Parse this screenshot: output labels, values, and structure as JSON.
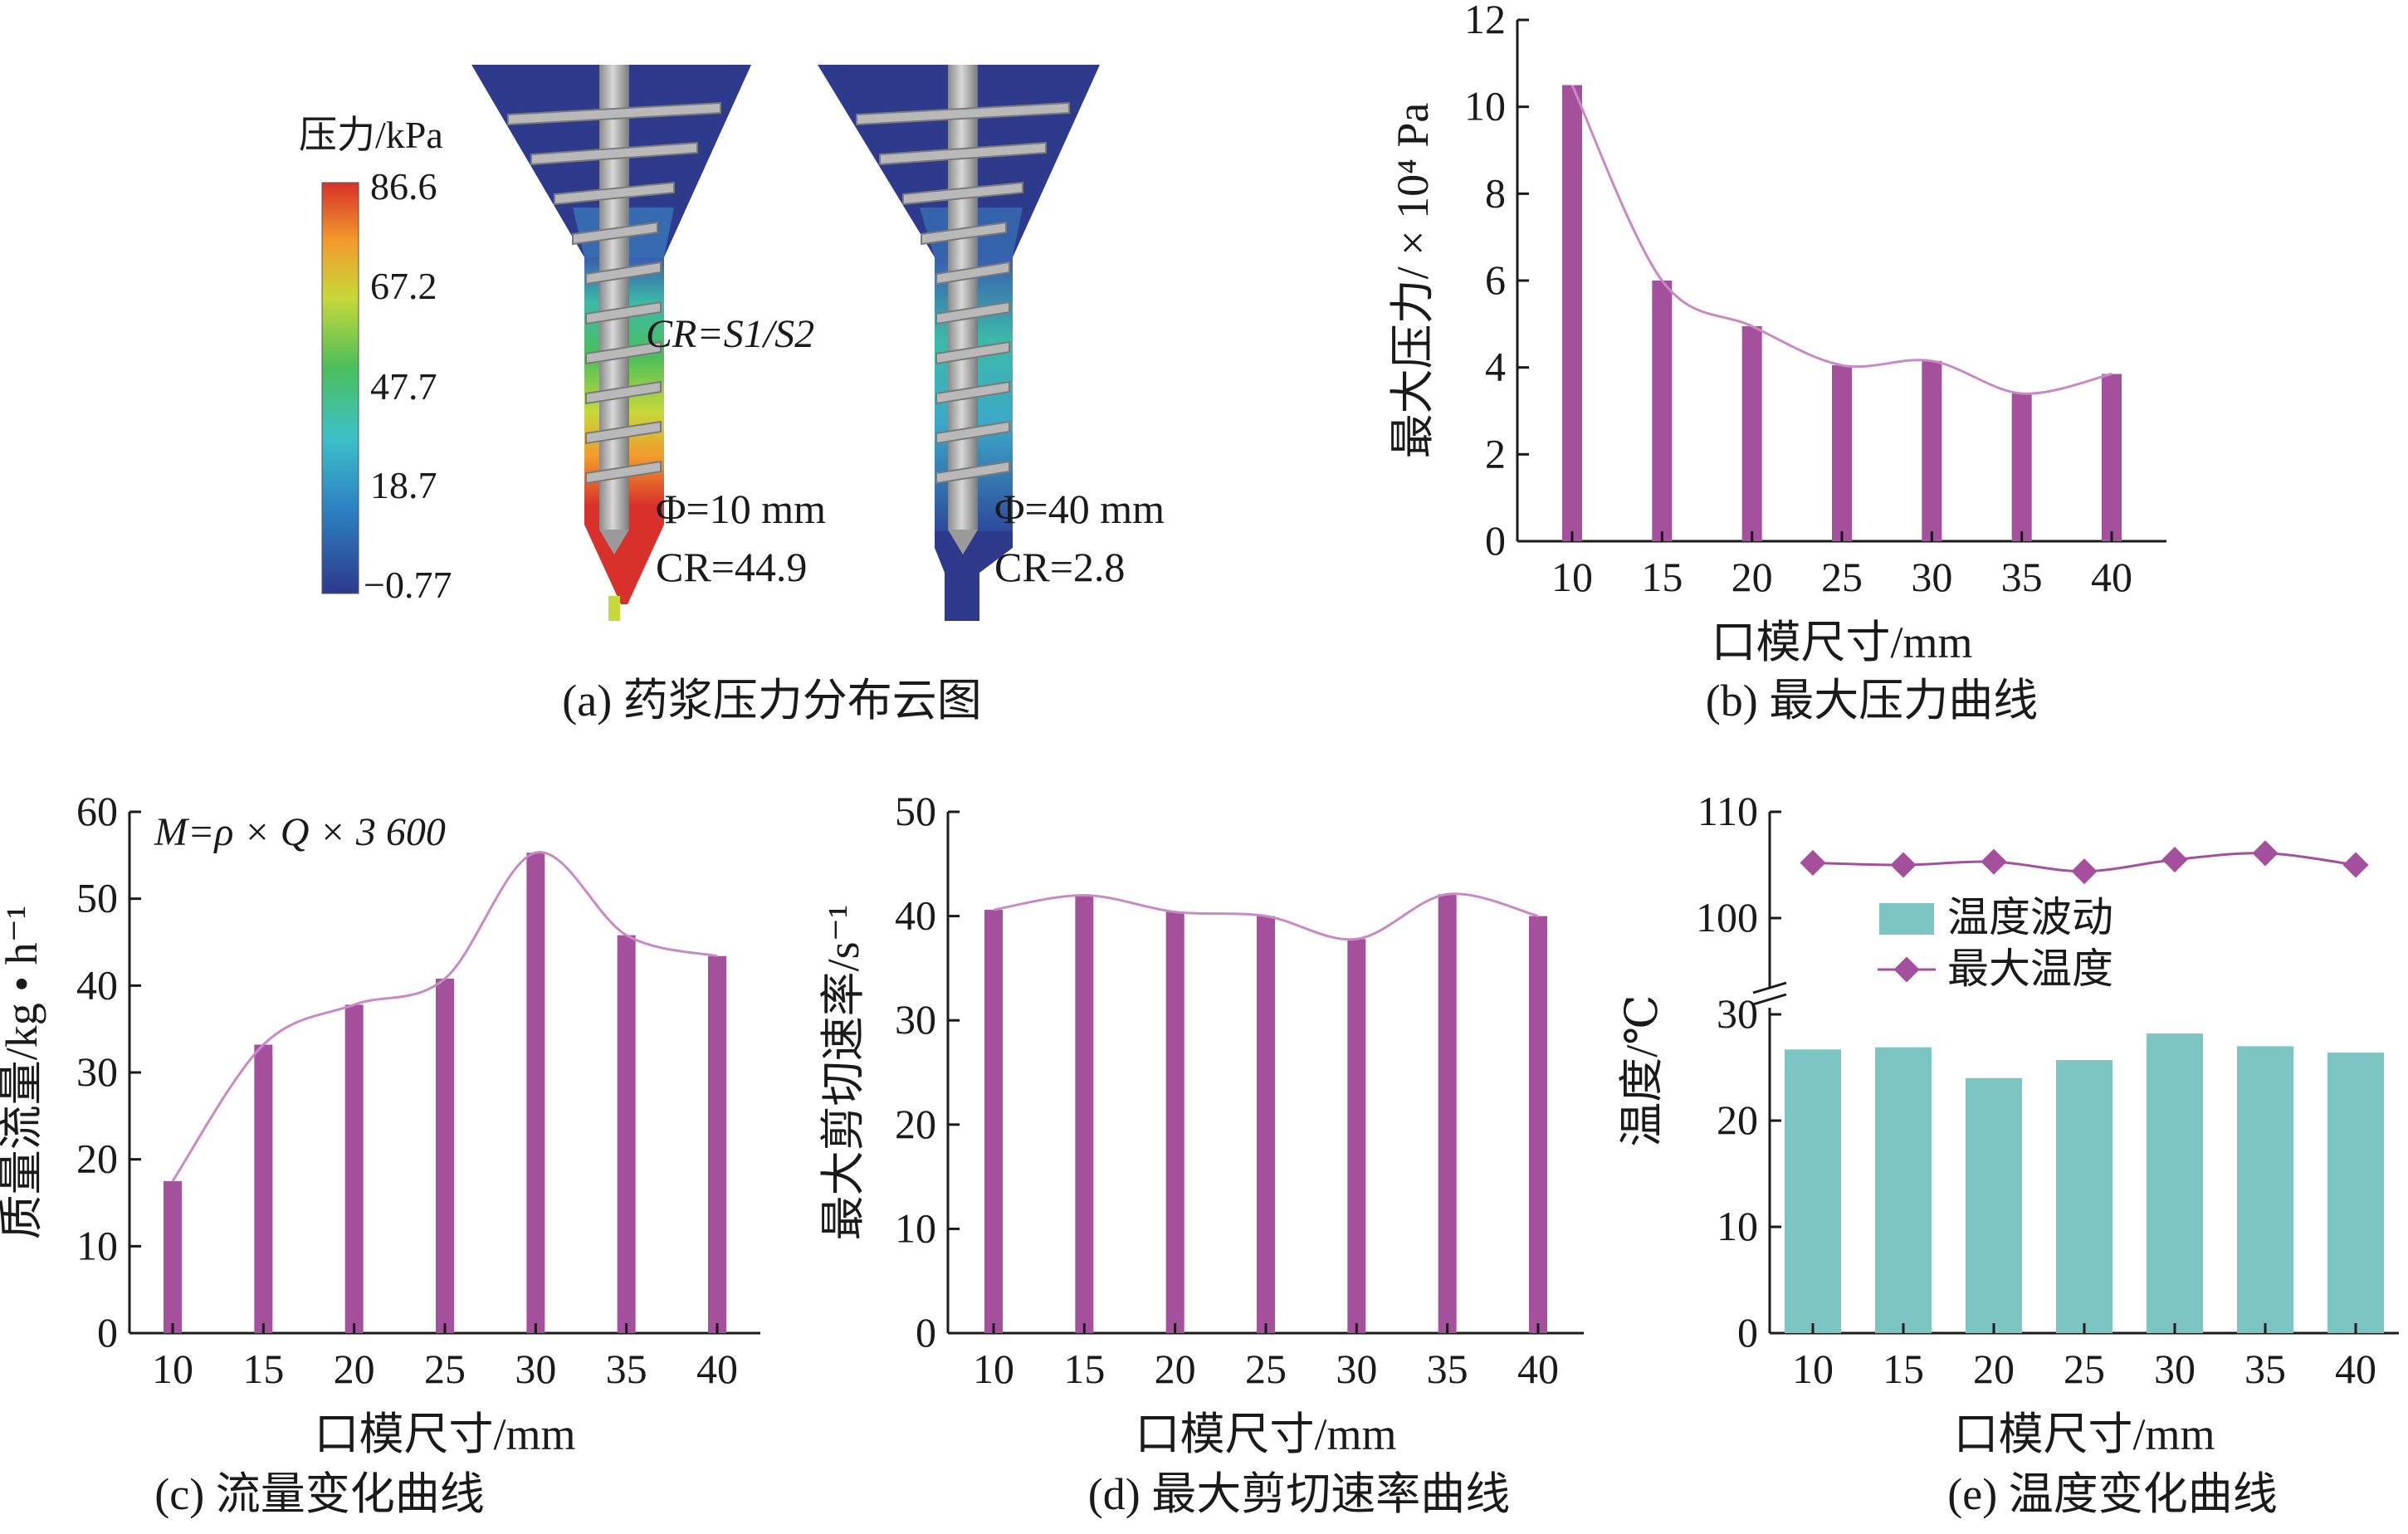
{
  "panels": {
    "a": {
      "caption": "(a) 药浆压力分布云图",
      "colorbar_title": "压力/kPa",
      "colorbar_ticks": [
        "86.6",
        "67.2",
        "47.7",
        "18.7",
        "−0.77"
      ],
      "cr_formula": "CR=S1/S2",
      "left_label": {
        "diameter": "Φ=10 mm",
        "cr": "CR=44.9"
      },
      "right_label": {
        "diameter": "Φ=40 mm",
        "cr": "CR=2.8"
      },
      "colors": {
        "low": "#2e3a8c",
        "high": "#d8302a"
      }
    },
    "b": {
      "caption": "(b) 最大压力曲线"
    },
    "c": {
      "caption": "(c) 流量变化曲线",
      "formula": "M=ρ × Q × 3 600"
    },
    "d": {
      "caption": "(d) 最大剪切速率曲线"
    },
    "e": {
      "caption": "(e) 温度变化曲线"
    }
  },
  "colors": {
    "bar": "#a4509d",
    "curve": "#c98ac4",
    "teal": "#7cc5c2",
    "axis": "#1a1a1a"
  },
  "chart_data": [
    {
      "id": "b",
      "type": "bar",
      "categories": [
        "10",
        "15",
        "20",
        "25",
        "30",
        "35",
        "40"
      ],
      "values": [
        10.5,
        6.0,
        4.95,
        4.05,
        4.15,
        3.4,
        3.85
      ],
      "xlabel": "口模尺寸/mm",
      "ylabel": "最大压力/ × 10⁴ Pa",
      "ylim": [
        0,
        12
      ],
      "yticks": [
        "0",
        "2",
        "4",
        "6",
        "8",
        "10",
        "12"
      ],
      "smooth_curve": true
    },
    {
      "id": "c",
      "type": "bar",
      "categories": [
        "10",
        "15",
        "20",
        "25",
        "30",
        "35",
        "40"
      ],
      "values": [
        17.5,
        33.2,
        37.8,
        40.8,
        55.3,
        45.8,
        43.4
      ],
      "xlabel": "口模尺寸/mm",
      "ylabel": "质量流量/kg • h⁻¹",
      "ylim": [
        0,
        60
      ],
      "yticks": [
        "0",
        "10",
        "20",
        "30",
        "40",
        "50",
        "60"
      ],
      "smooth_curve": true
    },
    {
      "id": "d",
      "type": "bar",
      "categories": [
        "10",
        "15",
        "20",
        "25",
        "30",
        "35",
        "40"
      ],
      "values": [
        40.6,
        42.0,
        40.4,
        40.0,
        37.8,
        42.1,
        40.0
      ],
      "xlabel": "口模尺寸/mm",
      "ylabel": "最大剪切速率/s⁻¹",
      "ylim": [
        0,
        50
      ],
      "yticks": [
        "0",
        "10",
        "20",
        "30",
        "40",
        "50"
      ],
      "smooth_curve": true
    },
    {
      "id": "e",
      "type": "bar",
      "categories": [
        "10",
        "15",
        "20",
        "25",
        "30",
        "35",
        "40"
      ],
      "series": [
        {
          "name": "温度波动",
          "type": "bar",
          "values": [
            26.7,
            26.9,
            24.0,
            25.7,
            28.2,
            27.0,
            26.4
          ]
        },
        {
          "name": "最大温度",
          "type": "line",
          "values": [
            105.2,
            105.0,
            105.3,
            104.4,
            105.5,
            106.1,
            105.0
          ]
        }
      ],
      "xlabel": "口模尺寸/mm",
      "ylabel": "温度/℃",
      "ylim_lower": [
        0,
        30
      ],
      "ylim_upper": [
        100,
        110
      ],
      "yticks": [
        "0",
        "10",
        "20",
        "30",
        "100",
        "110"
      ],
      "legend_position": "upper-left"
    }
  ]
}
